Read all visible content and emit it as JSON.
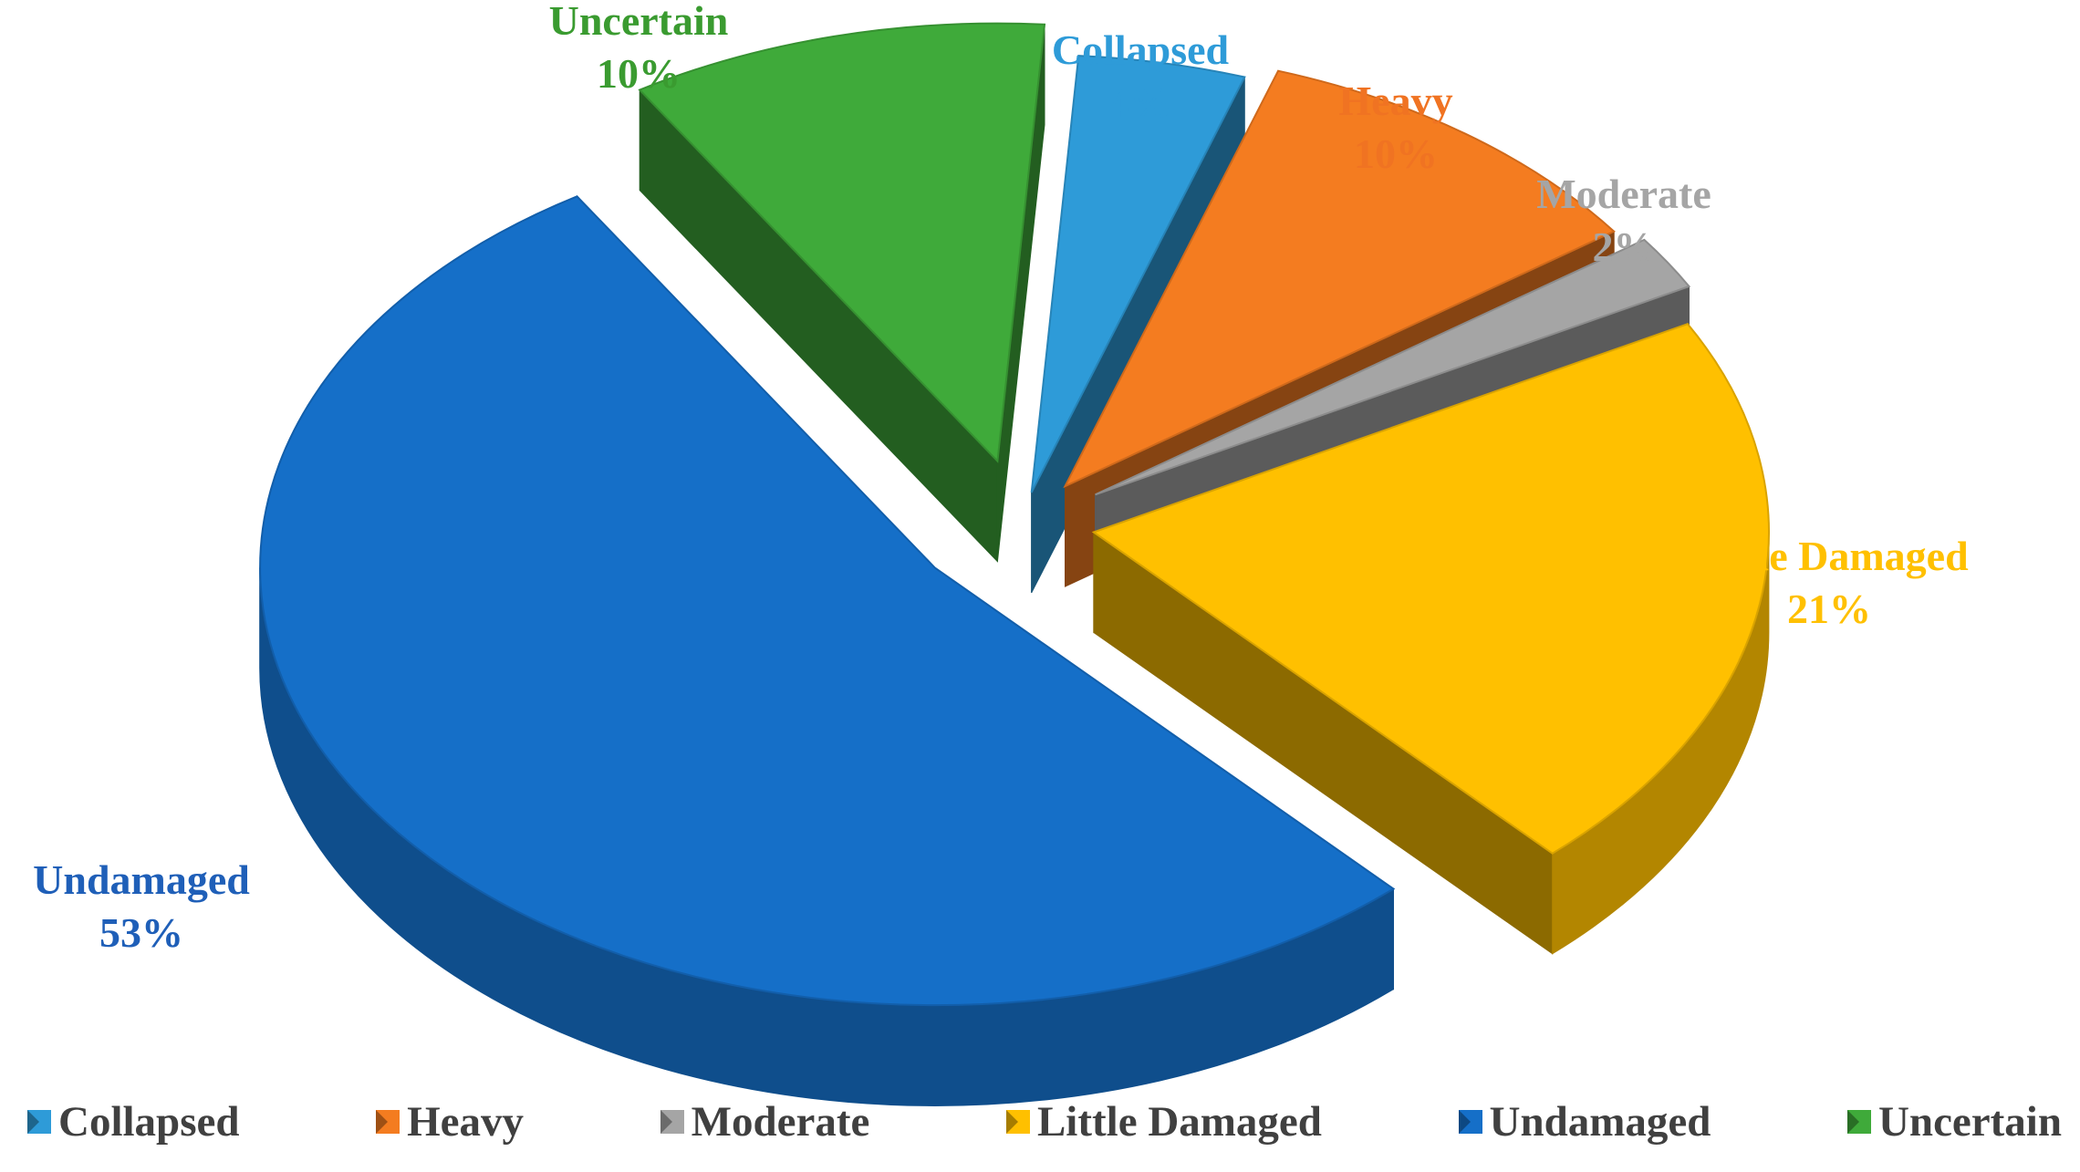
{
  "chart_data": {
    "type": "pie",
    "title": "",
    "slices": [
      {
        "label": "Collapsed",
        "value": 4,
        "display": "4%",
        "color": "#2e9bd8",
        "label_color": "#2e9bd8"
      },
      {
        "label": "Heavy",
        "value": 10,
        "display": "10%",
        "color": "#f47c20",
        "label_color": "#f07322"
      },
      {
        "label": "Moderate",
        "value": 2,
        "display": "2%",
        "color": "#a5a5a5",
        "label_color": "#a5a5a5"
      },
      {
        "label": "Little Damaged",
        "value": 21,
        "display": "21%",
        "color": "#ffc000",
        "label_color": "#ffc000"
      },
      {
        "label": "Undamaged",
        "value": 53,
        "display": "53%",
        "color": "#156fc8",
        "label_color": "#1f5fb8"
      },
      {
        "label": "Uncertain",
        "value": 10,
        "display": "10%",
        "color": "#3faa3a",
        "label_color": "#3a9b30"
      }
    ],
    "legend": {
      "position": "bottom",
      "entries": [
        "Collapsed",
        "Heavy",
        "Moderate",
        "Little Damaged",
        "Undamaged",
        "Uncertain"
      ]
    },
    "style": "3d-exploded"
  }
}
